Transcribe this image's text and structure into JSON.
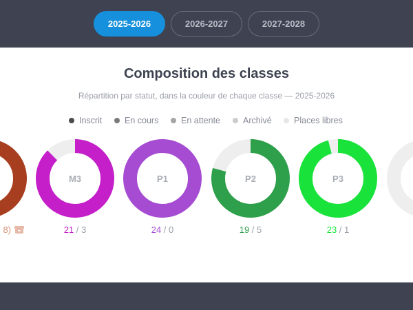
{
  "year_tabs": [
    {
      "label": "2025-2026",
      "active": true
    },
    {
      "label": "2026-2027",
      "active": false
    },
    {
      "label": "2027-2028",
      "active": false
    }
  ],
  "panel": {
    "title": "Composition des classes",
    "subtitle": "Répartition par statut, dans la couleur de chaque classe — 2025-2026"
  },
  "legend": [
    {
      "label": "Inscrit",
      "color": "#4a4a4a"
    },
    {
      "label": "En cours",
      "color": "#7a7a7a"
    },
    {
      "label": "En attente",
      "color": "#a5a5a5"
    },
    {
      "label": "Archivé",
      "color": "#cccccc"
    },
    {
      "label": "Places libres",
      "color": "#e6e6e6"
    }
  ],
  "classes": [
    {
      "name": "",
      "color": "#a83e20",
      "filled_fraction": 0.85,
      "count_main": "8)",
      "count_rest": "",
      "icon": "archive-icon"
    },
    {
      "name": "M3",
      "color": "#c41fc9",
      "filled_fraction": 0.875,
      "count_main": "21",
      "count_rest": " / 3"
    },
    {
      "name": "P1",
      "color": "#a64cd3",
      "filled_fraction": 1.0,
      "count_main": "24",
      "count_rest": " / 0"
    },
    {
      "name": "P2",
      "color": "#2e9f4b",
      "filled_fraction": 0.7917,
      "count_main": "19",
      "count_rest": " / 5"
    },
    {
      "name": "P3",
      "color": "#19e33b",
      "filled_fraction": 0.9583,
      "count_main": "23",
      "count_rest": " / 1"
    },
    {
      "name": "",
      "color": "#3b83d2",
      "filled_fraction": 0.2,
      "count_main": "",
      "count_rest": ""
    }
  ]
}
